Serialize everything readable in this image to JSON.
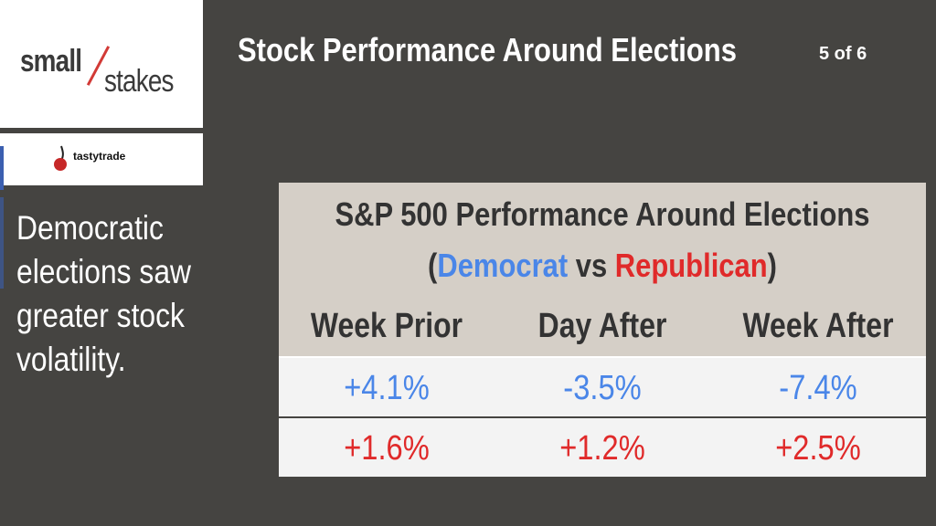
{
  "header": {
    "title": "Stock Performance Around Elections",
    "page_indicator": "5 of 6"
  },
  "brand": {
    "logo_part1": "small",
    "logo_part2": "stakes",
    "sponsor": "tastytrade"
  },
  "sidebar": {
    "text": "Democratic elections saw greater stock volatility."
  },
  "table": {
    "title_line1": "S&P 500 Performance Around Elections",
    "title_open": "(",
    "democrat_label": "Democrat",
    "vs_label": " vs ",
    "republican_label": "Republican",
    "title_close": ")",
    "columns": [
      "Week Prior",
      "Day After",
      "Week After"
    ],
    "rows": [
      {
        "party": "Democrat",
        "values": [
          "+4.1%",
          "-3.5%",
          "-7.4%"
        ]
      },
      {
        "party": "Republican",
        "values": [
          "+1.6%",
          "+1.2%",
          "+2.5%"
        ]
      }
    ]
  },
  "colors": {
    "background": "#454441",
    "democrat": "#4a86e8",
    "republican": "#e02a2a",
    "header_bg": "#d5cfc7"
  }
}
